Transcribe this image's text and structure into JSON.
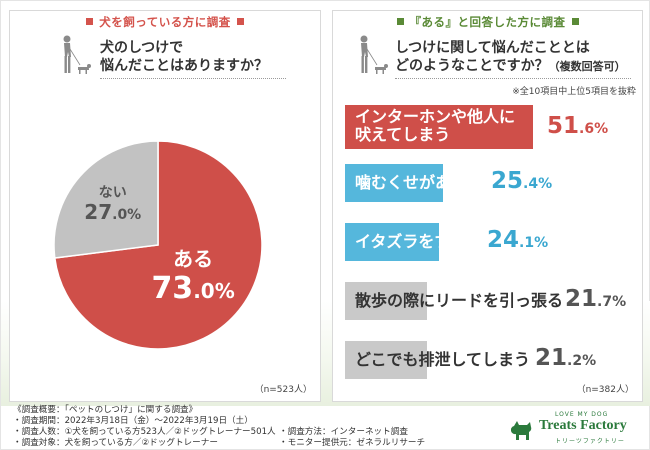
{
  "left": {
    "header": "犬を飼っている方に調査",
    "question_line1": "犬のしつけで",
    "question_line2": "悩んだことはありますか？",
    "n_note": "（n=523人）"
  },
  "right": {
    "header": "『ある』と回答した方に調査",
    "question_line1": "しつけに関して悩んだこととは",
    "question_line2": "どのようなことですか？",
    "question_suffix": "（複数回答可）",
    "top_note": "※全10項目中上位5項目を抜粋",
    "n_note": "（n=382人）"
  },
  "chart_data": [
    {
      "type": "pie",
      "slices": [
        {
          "label": "ある",
          "value": 73.0,
          "display_int": "73",
          "display_dec": ".0%",
          "color": "#cf4f49"
        },
        {
          "label": "ない",
          "value": 27.0,
          "display_int": "27",
          "display_dec": ".0%",
          "color": "#c2c2c2"
        }
      ]
    },
    {
      "type": "bar",
      "orientation": "horizontal",
      "categories": [
        "インターホンや他人に吠えてしまう",
        "噛むくせがある",
        "イタズラをする",
        "散歩の際にリードを引っ張る",
        "どこでも排泄してしまう"
      ],
      "labels": [
        [
          "インターホンや他人に",
          "吠えてしまう"
        ],
        [
          "噛むくせがある"
        ],
        [
          "イタズラをする"
        ],
        [
          "散歩の際にリードを引っ張る"
        ],
        [
          "どこでも排泄してしまう"
        ]
      ],
      "values": [
        51.6,
        25.4,
        24.1,
        21.7,
        21.2
      ],
      "display_int": [
        "51",
        "25",
        "24",
        "21",
        "21"
      ],
      "display_dec": [
        ".6%",
        ".4%",
        ".1%",
        ".7%",
        ".2%"
      ],
      "colors": [
        "#cf4f49",
        "#55b7dc",
        "#55b7dc",
        "#c9c9c9",
        "#c9c9c9"
      ],
      "pct_colors": [
        "#cf4f49",
        "#3aa7d0",
        "#3aa7d0",
        "#555555",
        "#555555"
      ]
    }
  ],
  "footer": {
    "title": "《調査概要：「ペットのしつけ」に関する調査》",
    "period": "・調査期間：2022年3月18日（金）〜2022年3月19日（土）",
    "people": "・調査人数：①犬を飼っている方523人／②ドッグトレーナー501人",
    "target": "・調査対象：犬を飼っている方／②ドッグトレーナー",
    "method": "・調査方法：インターネット調査",
    "provider": "・モニター提供元：ゼネラルリサーチ"
  },
  "logo": {
    "tagline": "LOVE MY DOG",
    "name": "Treats Factory",
    "sub": "トリーツファクトリー"
  }
}
